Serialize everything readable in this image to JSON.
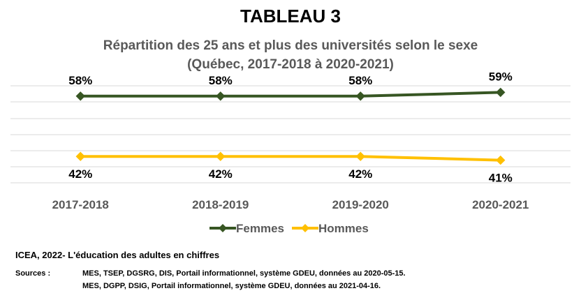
{
  "chart_data": {
    "type": "line",
    "title": "TABLEAU 3",
    "subtitle": [
      "Répartition des 25 ans et plus des universités selon le sexe",
      "(Québec, 2017-2018 à 2020-2021)"
    ],
    "categories": [
      "2017-2018",
      "2018-2019",
      "2019-2020",
      "2020-2021"
    ],
    "series": [
      {
        "name": "Femmes",
        "values": [
          58,
          58,
          58,
          59
        ],
        "labels": [
          "58%",
          "58%",
          "58%",
          "59%"
        ],
        "color": "#375623"
      },
      {
        "name": "Hommes",
        "values": [
          42,
          42,
          42,
          41
        ],
        "labels": [
          "42%",
          "42%",
          "42%",
          "41%"
        ],
        "color": "#FFC000"
      }
    ],
    "ylim": [
      35,
      65
    ],
    "grid": true,
    "legend": "bottom"
  },
  "footer": {
    "credit": "ICEA, 2022- L'éducation des adultes en chiffres",
    "sources_label": "Sources :",
    "sources": [
      "MES, TSEP, DGSRG, DIS, Portail informationnel, système GDEU, données au 2020-05-15.",
      "MES, DGPP, DSIG, Portail informationnel, système GDEU, données au 2021-04-16."
    ]
  }
}
